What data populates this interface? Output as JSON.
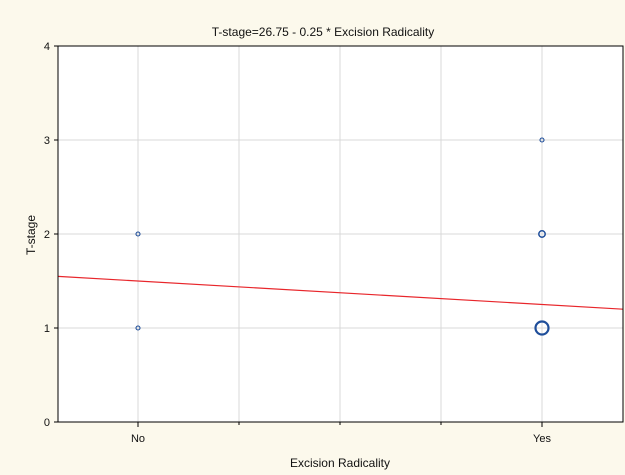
{
  "chart_data": {
    "type": "scatter",
    "title": "T-stage=26.75 - 0.25 * Excision Radicality",
    "xlabel": "Excision Radicality",
    "ylabel": "T-stage",
    "x_categories": [
      "No",
      "Yes"
    ],
    "ylim": [
      0,
      4
    ],
    "y_ticks": [
      "0",
      "1",
      "2",
      "3",
      "4"
    ],
    "grid": true,
    "points": [
      {
        "x": "No",
        "y": 1,
        "count": 1
      },
      {
        "x": "No",
        "y": 2,
        "count": 1
      },
      {
        "x": "Yes",
        "y": 1,
        "count": 6
      },
      {
        "x": "Yes",
        "y": 2,
        "count": 2
      },
      {
        "x": "Yes",
        "y": 3,
        "count": 1
      }
    ],
    "regression_line": {
      "y_at_No": 1.5,
      "y_at_Yes": 1.25
    },
    "colors": {
      "background": "#fcf9ec",
      "plot_background": "#ffffff",
      "grid": "#d9d9d9",
      "marker": "#1f4e9a",
      "regression": "#e8262b"
    }
  }
}
